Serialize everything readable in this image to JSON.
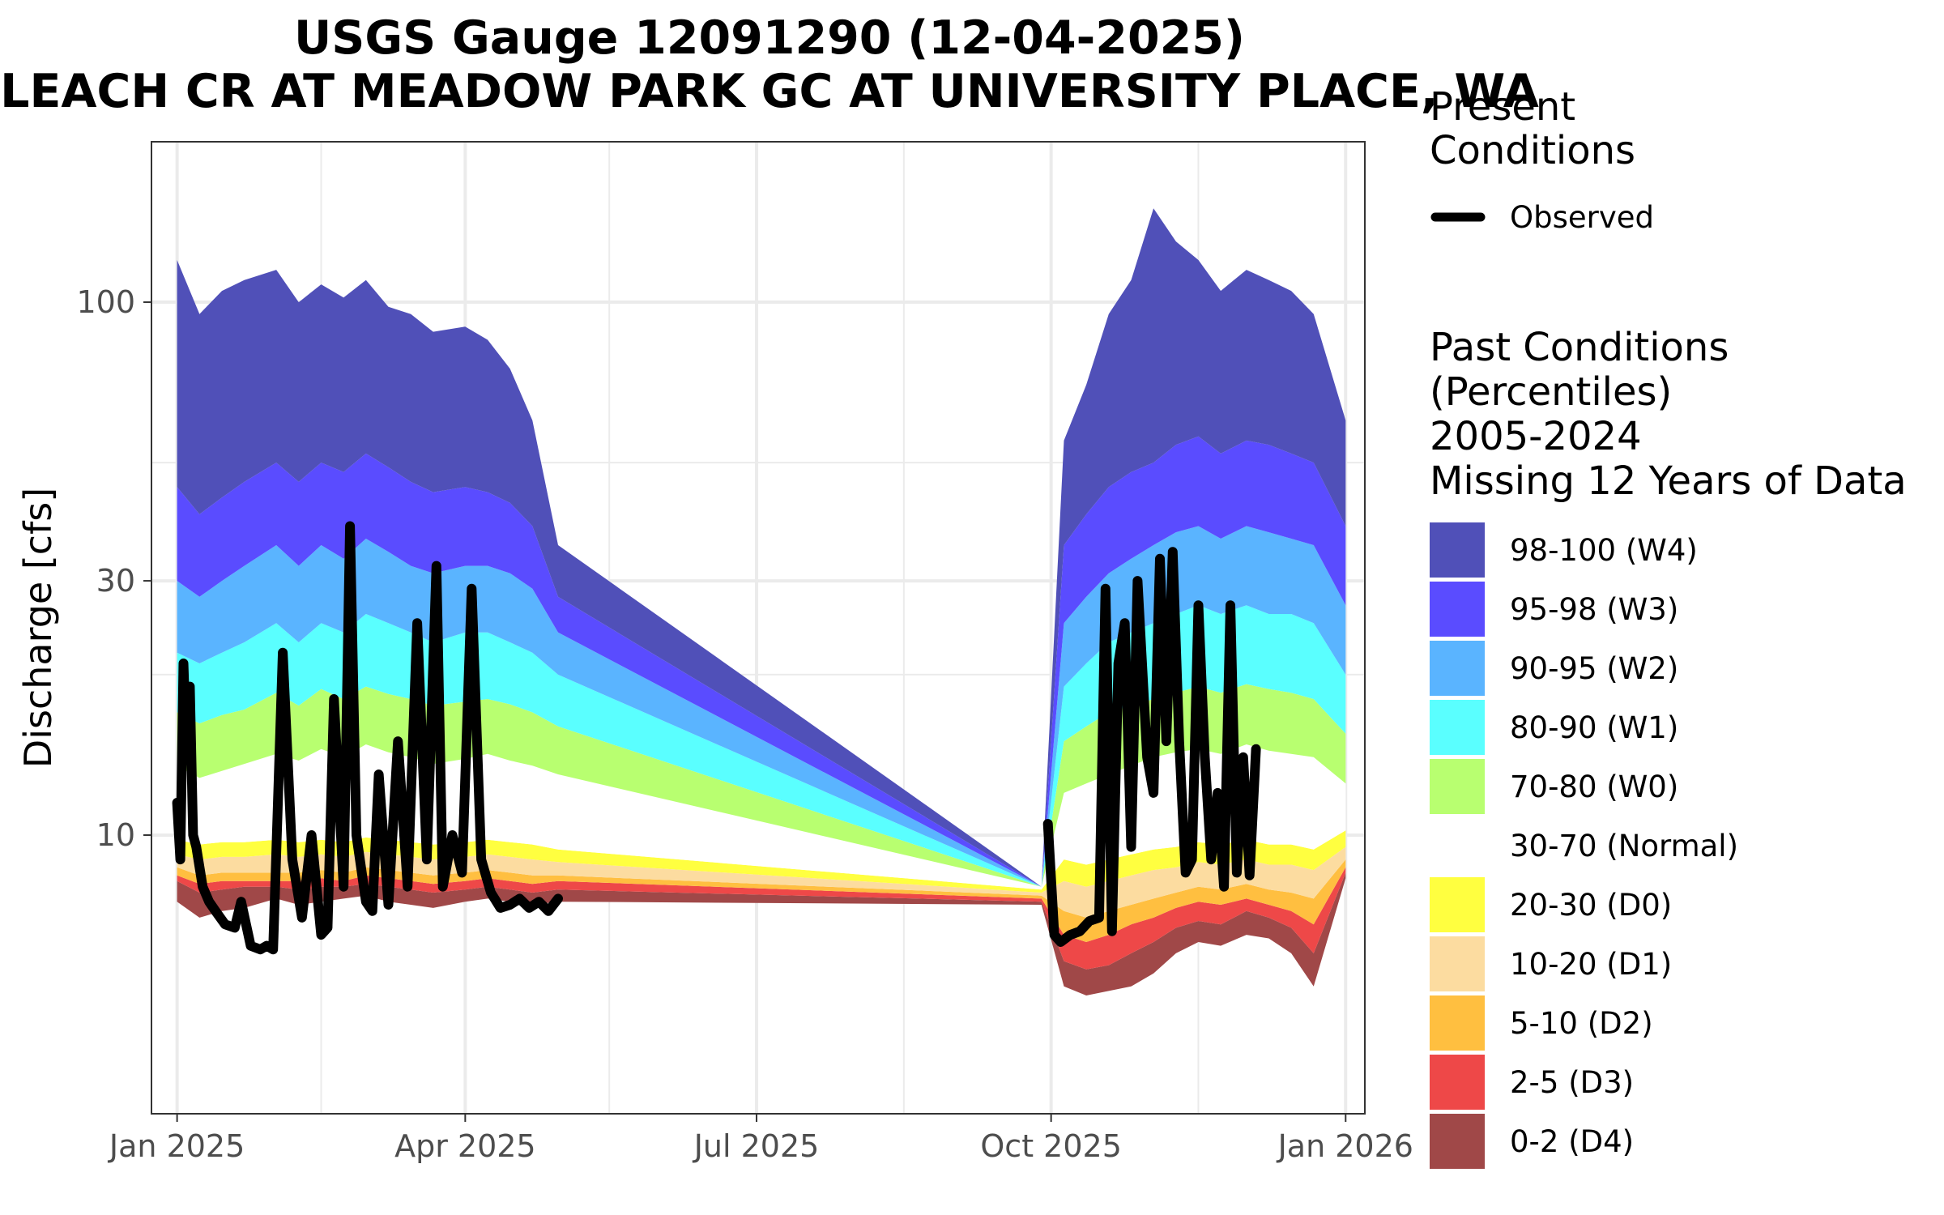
{
  "chart_data": {
    "type": "area",
    "title": "USGS Gauge 12091290 (12-04-2025)",
    "subtitle": "LEACH CR AT MEADOW PARK GC AT UNIVERSITY PLACE, WA",
    "xlabel": "",
    "ylabel": "Discharge [cfs]",
    "y_scale": "log",
    "ylim": [
      3.0,
      200
    ],
    "xlim": [
      "2024-12-24",
      "2026-01-07"
    ],
    "x_ticks": [
      "Jan 2025",
      "Apr 2025",
      "Jul 2025",
      "Oct 2025",
      "Jan 2026"
    ],
    "x_tick_dates": [
      "2025-01-01",
      "2025-04-01",
      "2025-07-01",
      "2025-10-01",
      "2026-01-01"
    ],
    "y_ticks": [
      10,
      30,
      100
    ],
    "grid": true,
    "legend_placement": "right",
    "present_legend": {
      "title_line1": "Present",
      "title_line2": "Conditions",
      "observed_label": "Observed"
    },
    "past_legend": {
      "line1": "Past Conditions",
      "line2": "(Percentiles)",
      "line3": "2005-2024",
      "line4": "Missing 12 Years of Data"
    },
    "percentile_bands": [
      {
        "label": "98-100 (W4)",
        "color": "#5050b8"
      },
      {
        "label": "95-98 (W3)",
        "color": "#5a4cff"
      },
      {
        "label": "90-95 (W2)",
        "color": "#5ab4ff"
      },
      {
        "label": "80-90 (W1)",
        "color": "#5affff"
      },
      {
        "label": "70-80 (W0)",
        "color": "#b8ff70"
      },
      {
        "label": "30-70 (Normal)",
        "color": "#ffffff"
      },
      {
        "label": "20-30 (D0)",
        "color": "#ffff40"
      },
      {
        "label": "10-20 (D1)",
        "color": "#fcdca0"
      },
      {
        "label": "5-10 (D2)",
        "color": "#ffbf40"
      },
      {
        "label": "2-5 (D3)",
        "color": "#ee4848"
      },
      {
        "label": "0-2 (D4)",
        "color": "#a04848"
      }
    ],
    "percentile_series": [
      {
        "x": [
          "2025-01-01",
          "2025-01-08",
          "2025-01-15",
          "2025-01-22",
          "2025-02-01",
          "2025-02-08",
          "2025-02-15",
          "2025-02-22",
          "2025-03-01",
          "2025-03-08",
          "2025-03-15",
          "2025-03-22",
          "2025-04-01",
          "2025-04-08",
          "2025-04-15",
          "2025-04-22",
          "2025-04-30",
          "2025-09-28",
          "2025-10-05",
          "2025-10-12",
          "2025-10-19",
          "2025-10-26",
          "2025-11-02",
          "2025-11-09",
          "2025-11-16",
          "2025-11-23",
          "2025-12-01",
          "2025-12-08",
          "2025-12-15",
          "2025-12-22",
          "2026-01-01"
        ],
        "p0": [
          7.5,
          7.0,
          7.2,
          7.3,
          7.6,
          7.4,
          7.5,
          7.6,
          7.7,
          7.5,
          7.4,
          7.3,
          7.5,
          7.6,
          7.5,
          7.4,
          7.5,
          7.4,
          5.2,
          5.0,
          5.1,
          5.2,
          5.5,
          6.0,
          6.3,
          6.2,
          6.5,
          6.4,
          6.0,
          5.2,
          8.3
        ],
        "p2": [
          8.2,
          7.8,
          7.9,
          8.0,
          8.0,
          7.9,
          8.0,
          8.0,
          8.1,
          8.0,
          7.9,
          7.8,
          7.9,
          8.0,
          7.9,
          7.8,
          7.9,
          7.5,
          5.8,
          5.6,
          5.7,
          6.0,
          6.3,
          6.7,
          6.9,
          6.8,
          7.2,
          7.0,
          6.7,
          6.0,
          8.5
        ],
        "p5": [
          8.4,
          8.1,
          8.2,
          8.2,
          8.2,
          8.2,
          8.3,
          8.2,
          8.4,
          8.3,
          8.2,
          8.1,
          8.2,
          8.3,
          8.2,
          8.1,
          8.2,
          7.6,
          6.5,
          6.3,
          6.5,
          6.8,
          7.0,
          7.3,
          7.5,
          7.4,
          7.6,
          7.4,
          7.2,
          6.8,
          8.7
        ],
        "p10": [
          8.7,
          8.4,
          8.5,
          8.5,
          8.5,
          8.5,
          8.6,
          8.5,
          8.7,
          8.6,
          8.5,
          8.4,
          8.5,
          8.6,
          8.5,
          8.4,
          8.4,
          7.7,
          7.2,
          7.0,
          7.2,
          7.4,
          7.6,
          7.8,
          8.0,
          7.9,
          8.1,
          7.9,
          7.8,
          7.6,
          9.0
        ],
        "p20": [
          9.2,
          9.0,
          9.1,
          9.1,
          9.2,
          9.1,
          9.2,
          9.1,
          9.3,
          9.2,
          9.1,
          9.0,
          9.1,
          9.2,
          9.1,
          9.0,
          8.9,
          7.8,
          8.2,
          8.0,
          8.2,
          8.4,
          8.6,
          8.7,
          8.9,
          8.8,
          9.0,
          8.8,
          8.8,
          8.6,
          9.5
        ],
        "p30": [
          9.8,
          9.6,
          9.7,
          9.7,
          9.8,
          9.7,
          9.8,
          9.7,
          9.9,
          9.8,
          9.7,
          9.6,
          9.7,
          9.8,
          9.7,
          9.6,
          9.4,
          7.9,
          9.0,
          8.8,
          9.0,
          9.2,
          9.4,
          9.5,
          9.7,
          9.6,
          9.8,
          9.6,
          9.6,
          9.4,
          10.2
        ],
        "p70": [
          13.5,
          12.8,
          13.2,
          13.6,
          14.2,
          13.8,
          14.5,
          14.0,
          14.8,
          14.3,
          14.0,
          13.6,
          13.9,
          14.2,
          13.8,
          13.5,
          13.0,
          8.0,
          12.0,
          12.5,
          13.0,
          13.5,
          14.0,
          14.3,
          14.5,
          14.2,
          14.8,
          14.4,
          14.2,
          14.0,
          12.5
        ],
        "p80": [
          17.0,
          16.2,
          16.8,
          17.2,
          18.5,
          17.5,
          18.8,
          18.0,
          19.0,
          18.4,
          18.0,
          17.5,
          17.8,
          18.0,
          17.6,
          17.0,
          16.0,
          8.0,
          15.0,
          16.0,
          17.0,
          17.5,
          18.0,
          18.5,
          19.0,
          18.5,
          19.2,
          18.8,
          18.5,
          18.0,
          15.5
        ],
        "p90": [
          22,
          21,
          22,
          23,
          25,
          23,
          25,
          24,
          26,
          25,
          24,
          23,
          24,
          24,
          23,
          22,
          20,
          8.0,
          19,
          21,
          23,
          24,
          25,
          26,
          27,
          26,
          27,
          26,
          26,
          25,
          20
        ],
        "p95": [
          30,
          28,
          30,
          32,
          35,
          32,
          35,
          33,
          36,
          34,
          32,
          31,
          32,
          32,
          31,
          29,
          24,
          8.0,
          25,
          28,
          31,
          33,
          35,
          37,
          38,
          36,
          38,
          37,
          36,
          35,
          27
        ],
        "p98": [
          45,
          40,
          43,
          46,
          50,
          46,
          50,
          48,
          52,
          49,
          46,
          44,
          45,
          44,
          42,
          38,
          28,
          8.0,
          35,
          40,
          45,
          48,
          50,
          54,
          56,
          52,
          55,
          54,
          52,
          50,
          38
        ],
        "p100": [
          120,
          95,
          105,
          110,
          115,
          100,
          108,
          102,
          110,
          98,
          95,
          88,
          90,
          85,
          75,
          60,
          35,
          8.0,
          55,
          70,
          95,
          110,
          150,
          130,
          120,
          105,
          115,
          110,
          105,
          95,
          60
        ]
      }
    ],
    "observed": {
      "name": "Observed",
      "x": [
        "2025-01-01",
        "2025-01-02",
        "2025-01-03",
        "2025-01-04",
        "2025-01-05",
        "2025-01-06",
        "2025-01-07",
        "2025-01-09",
        "2025-01-11",
        "2025-01-13",
        "2025-01-16",
        "2025-01-19",
        "2025-01-21",
        "2025-01-24",
        "2025-01-27",
        "2025-01-29",
        "2025-01-31",
        "2025-02-03",
        "2025-02-06",
        "2025-02-09",
        "2025-02-12",
        "2025-02-15",
        "2025-02-17",
        "2025-02-19",
        "2025-02-22",
        "2025-02-24",
        "2025-02-26",
        "2025-03-01",
        "2025-03-03",
        "2025-03-05",
        "2025-03-08",
        "2025-03-11",
        "2025-03-14",
        "2025-03-17",
        "2025-03-20",
        "2025-03-23",
        "2025-03-25",
        "2025-03-28",
        "2025-03-31",
        "2025-04-03",
        "2025-04-06",
        "2025-04-09",
        "2025-04-12",
        "2025-04-15",
        "2025-04-18",
        "2025-04-21",
        "2025-04-24",
        "2025-04-27",
        "2025-04-30",
        "2025-09-30",
        "2025-10-02",
        "2025-10-04",
        "2025-10-07",
        "2025-10-10",
        "2025-10-13",
        "2025-10-16",
        "2025-10-18",
        "2025-10-20",
        "2025-10-22",
        "2025-10-24",
        "2025-10-26",
        "2025-10-28",
        "2025-10-31",
        "2025-11-02",
        "2025-11-04",
        "2025-11-06",
        "2025-11-08",
        "2025-11-10",
        "2025-11-12",
        "2025-11-14",
        "2025-11-16",
        "2025-11-18",
        "2025-11-20",
        "2025-11-22",
        "2025-11-24",
        "2025-11-26",
        "2025-11-28",
        "2025-11-30",
        "2025-12-02",
        "2025-12-04"
      ],
      "values": [
        11.5,
        9.0,
        21.0,
        14.0,
        19.0,
        10.0,
        9.5,
        8.0,
        7.5,
        7.2,
        6.8,
        6.7,
        7.5,
        6.2,
        6.1,
        6.2,
        6.1,
        22.0,
        9.0,
        7.0,
        10.0,
        6.5,
        6.7,
        18.0,
        8.0,
        38.0,
        10.0,
        7.5,
        7.2,
        13.0,
        7.4,
        15.0,
        8.0,
        25.0,
        9.0,
        32.0,
        8.0,
        10.0,
        8.5,
        29.0,
        9.0,
        7.8,
        7.3,
        7.4,
        7.6,
        7.3,
        7.5,
        7.2,
        7.6,
        10.5,
        6.5,
        6.3,
        6.5,
        6.6,
        6.9,
        7.0,
        29.0,
        6.6,
        21.0,
        25.0,
        9.5,
        30.0,
        14.0,
        12.0,
        33.0,
        15.0,
        34.0,
        15.0,
        8.5,
        9.0,
        27.0,
        14.0,
        9.0,
        12.0,
        8.0,
        27.0,
        8.5,
        14.0,
        8.4,
        14.5
      ]
    }
  }
}
